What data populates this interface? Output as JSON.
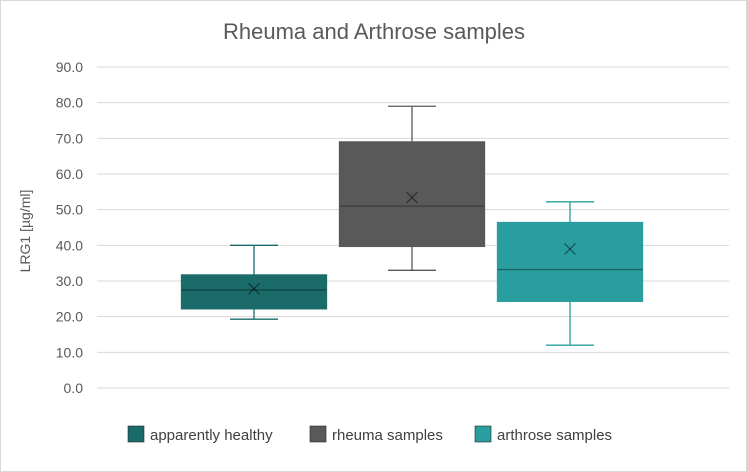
{
  "chart_data": {
    "type": "boxplot",
    "title": "Rheuma and Arthrose samples",
    "ylabel": "LRG1 [µg/ml]",
    "ylim": [
      0,
      90
    ],
    "y_ticks": [
      "0.0",
      "10.0",
      "20.0",
      "30.0",
      "40.0",
      "50.0",
      "60.0",
      "70.0",
      "80.0",
      "90.0"
    ],
    "grid": true,
    "legend_position": "bottom",
    "series": [
      {
        "name": "apparently healthy",
        "color": "#1a6b6a",
        "min": 19.3,
        "q1": 22.2,
        "median": 27.5,
        "q3": 31.7,
        "max": 40.0,
        "mean": 27.8
      },
      {
        "name": "rheuma samples",
        "color": "#595959",
        "min": 33.0,
        "q1": 39.7,
        "median": 51.0,
        "q3": 69.0,
        "max": 79.0,
        "mean": 53.4
      },
      {
        "name": "arthrose samples",
        "color": "#2a9e9e",
        "min": 12.0,
        "q1": 24.3,
        "median": 33.2,
        "q3": 46.4,
        "max": 52.2,
        "mean": 39.0
      }
    ]
  }
}
